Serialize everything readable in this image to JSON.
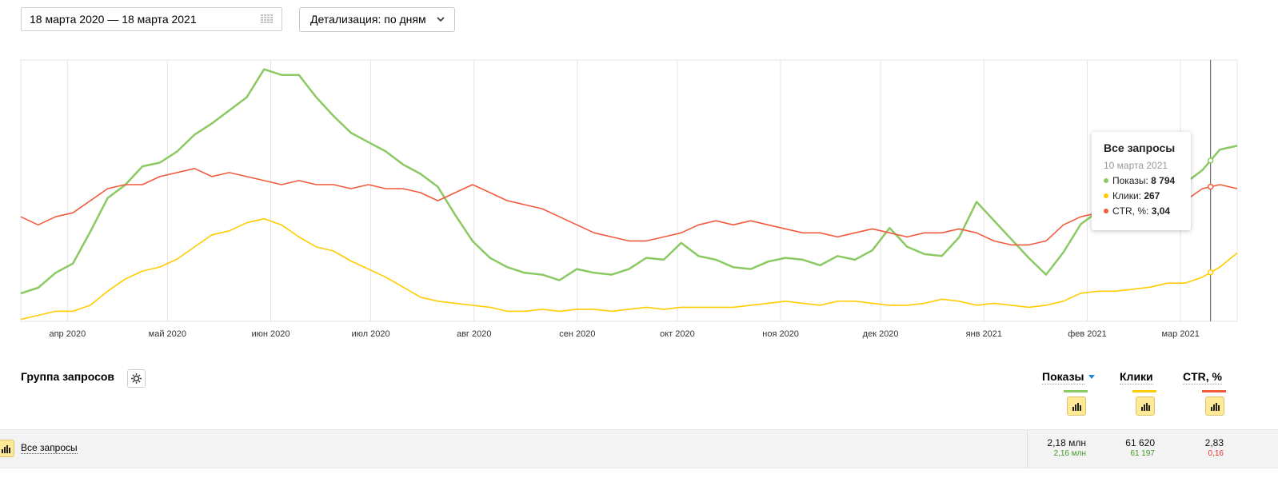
{
  "date_range": {
    "value": "18 марта 2020 — 18 марта 2021",
    "icon": "calendar-icon"
  },
  "detail_select": {
    "label": "Детализация: по дням",
    "icon": "chevron-down-icon"
  },
  "colors": {
    "shows": "#8bc963",
    "clicks": "#ffcc00",
    "ctr": "#f25a3c"
  },
  "chart_data": {
    "type": "line",
    "x_labels": [
      "апр 2020",
      "май 2020",
      "июн 2020",
      "июл 2020",
      "авг 2020",
      "сен 2020",
      "окт 2020",
      "ноя 2020",
      "дек 2020",
      "янв 2021",
      "фев 2021",
      "мар 2021"
    ],
    "x_start": "2020-03-18",
    "x_end": "2021-03-18",
    "grid": true,
    "axis_values_shown": false,
    "series": [
      {
        "name": "Показы",
        "color": "#8bc963",
        "values": [
          1500,
          1800,
          2600,
          3100,
          4800,
          6600,
          7300,
          8300,
          8500,
          9100,
          10000,
          10600,
          11300,
          12000,
          13500,
          13200,
          13200,
          12000,
          11000,
          10100,
          9600,
          9100,
          8400,
          7900,
          7200,
          5700,
          4300,
          3400,
          2900,
          2600,
          2500,
          2200,
          2800,
          2600,
          2500,
          2800,
          3400,
          3300,
          4200,
          3500,
          3300,
          2900,
          2800,
          3200,
          3400,
          3300,
          3000,
          3500,
          3300,
          3800,
          5000,
          4000,
          3600,
          3500,
          4500,
          6400,
          5400,
          4400,
          3400,
          2500,
          3700,
          5200,
          5900,
          6800,
          7600,
          7200,
          7100,
          7400,
          8100,
          9200,
          9400
        ]
      },
      {
        "name": "Клики",
        "color": "#ffcc00",
        "values": [
          100,
          300,
          500,
          500,
          800,
          1500,
          2100,
          2500,
          2700,
          3100,
          3700,
          4300,
          4500,
          4900,
          5100,
          4800,
          4200,
          3700,
          3500,
          3000,
          2600,
          2200,
          1700,
          1200,
          1000,
          900,
          800,
          700,
          500,
          500,
          600,
          500,
          600,
          600,
          500,
          600,
          700,
          600,
          700,
          700,
          700,
          700,
          800,
          900,
          1000,
          900,
          800,
          1000,
          1000,
          900,
          800,
          800,
          900,
          1100,
          1000,
          800,
          900,
          800,
          700,
          800,
          1000,
          1400,
          1500,
          1500,
          1600,
          1700,
          1900,
          1900,
          2200,
          2700,
          3400
        ]
      },
      {
        "name": "CTR, %",
        "color": "#f25a3c",
        "values": [
          2.6,
          2.4,
          2.6,
          2.7,
          3.0,
          3.3,
          3.4,
          3.4,
          3.6,
          3.7,
          3.8,
          3.6,
          3.7,
          3.6,
          3.5,
          3.4,
          3.5,
          3.4,
          3.4,
          3.3,
          3.4,
          3.3,
          3.3,
          3.2,
          3.0,
          3.2,
          3.4,
          3.2,
          3.0,
          2.9,
          2.8,
          2.6,
          2.4,
          2.2,
          2.1,
          2.0,
          2.0,
          2.1,
          2.2,
          2.4,
          2.5,
          2.4,
          2.5,
          2.4,
          2.3,
          2.2,
          2.2,
          2.1,
          2.2,
          2.3,
          2.2,
          2.1,
          2.2,
          2.2,
          2.3,
          2.2,
          2.0,
          1.9,
          1.9,
          2.0,
          2.4,
          2.6,
          2.7,
          2.7,
          2.8,
          2.9,
          3.0,
          3.0,
          3.3,
          3.4,
          3.3
        ]
      }
    ]
  },
  "tooltip": {
    "title": "Все запросы",
    "date": "10 марта 2021",
    "rows": [
      {
        "label": "Показы:",
        "value": "8 794",
        "color": "#8bc963"
      },
      {
        "label": "Клики:",
        "value": "267",
        "color": "#ffcc00"
      },
      {
        "label": "CTR, %:",
        "value": "3,04",
        "color": "#f25a3c"
      }
    ]
  },
  "table": {
    "group_label": "Группа запросов",
    "gear_icon": "gear-icon",
    "columns": [
      {
        "label": "Показы",
        "sorted": "desc",
        "color": "#8bc963"
      },
      {
        "label": "Клики",
        "color": "#ffcc00"
      },
      {
        "label": "CTR, %",
        "color": "#f25a3c"
      }
    ],
    "rows": [
      {
        "name": "Все запросы",
        "values": [
          {
            "main": "2,18 млн",
            "sub": "2,16 млн",
            "sub_color": "#3f9a27"
          },
          {
            "main": "61 620",
            "sub": "61 197",
            "sub_color": "#3f9a27"
          },
          {
            "main": "2,83",
            "sub": "0,16",
            "sub_color": "#e8322a"
          }
        ]
      }
    ]
  }
}
